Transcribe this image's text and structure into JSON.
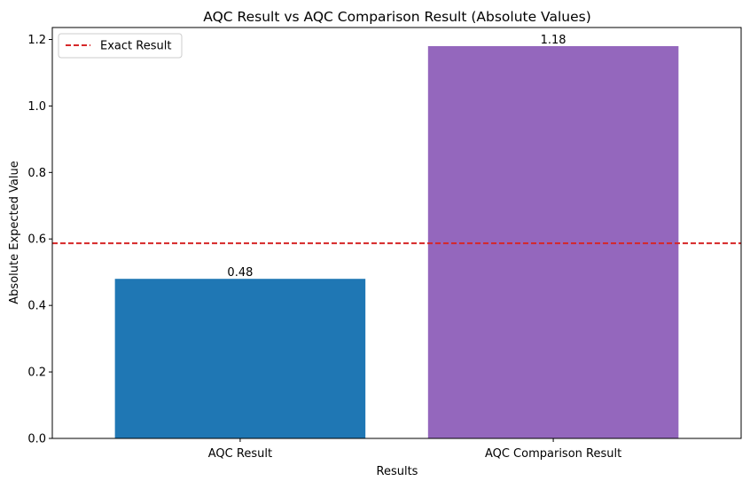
{
  "chart_data": {
    "type": "bar",
    "title": "AQC Result vs AQC Comparison Result (Absolute Values)",
    "xlabel": "Results",
    "ylabel": "Absolute Expected Value",
    "categories": [
      "AQC Result",
      "AQC Comparison Result"
    ],
    "values": [
      0.48,
      1.18
    ],
    "value_labels": [
      "0.48",
      "1.18"
    ],
    "bar_colors": [
      "#1f77b4",
      "#9467bd"
    ],
    "ylim": [
      0,
      1.236
    ],
    "yticks": [
      0.0,
      0.2,
      0.4,
      0.6,
      0.8,
      1.0,
      1.2
    ],
    "ytick_labels": [
      "0.0",
      "0.2",
      "0.4",
      "0.6",
      "0.8",
      "1.0",
      "1.2"
    ],
    "reference_line": {
      "label": "Exact Result",
      "value": 0.587,
      "color": "#d62728",
      "style": "dashed"
    },
    "legend": {
      "position": "top-left",
      "entries": [
        "Exact Result"
      ]
    },
    "grid": false
  }
}
